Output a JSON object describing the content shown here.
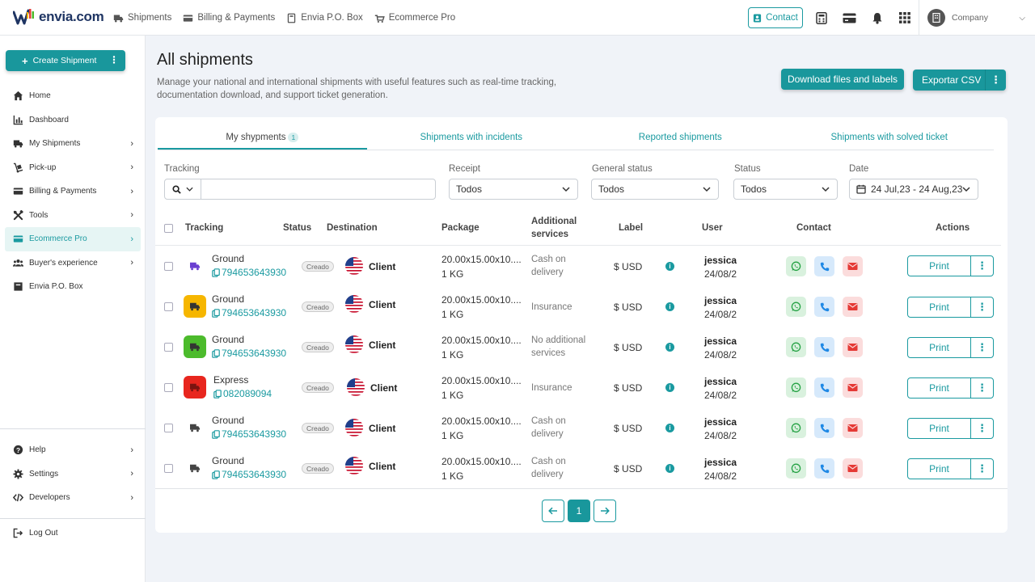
{
  "brand": {
    "name": "envia.com"
  },
  "topnav": [
    {
      "label": "Shipments",
      "icon": "truck-icon"
    },
    {
      "label": "Billing & Payments",
      "icon": "card-icon"
    },
    {
      "label": "Envia P.O. Box",
      "icon": "box-icon"
    },
    {
      "label": "Ecommerce Pro",
      "icon": "cart-icon"
    }
  ],
  "top_actions": {
    "contact": "Contact",
    "company": "Company"
  },
  "sidebar": {
    "create_label": "Create Shipment",
    "items": [
      {
        "label": "Home",
        "arrow": false
      },
      {
        "label": "Dashboard",
        "arrow": false
      },
      {
        "label": "My Shipments",
        "arrow": true
      },
      {
        "label": "Pick-up",
        "arrow": true
      },
      {
        "label": "Billing & Payments",
        "arrow": true
      },
      {
        "label": "Tools",
        "arrow": true
      },
      {
        "label": "Ecommerce Pro",
        "arrow": true,
        "active": true
      },
      {
        "label": "Buyer's experience",
        "arrow": true
      },
      {
        "label": "Envia P.O. Box",
        "arrow": false
      }
    ],
    "bottom": [
      {
        "label": "Help"
      },
      {
        "label": "Settings"
      },
      {
        "label": "Developers"
      }
    ],
    "logout": "Log Out"
  },
  "page": {
    "title": "All shipments",
    "description": "Manage your national and international shipments with useful features such as real-time tracking, documentation download, and support ticket generation.",
    "download_btn": "Download files and labels",
    "export_btn": "Exportar CSV"
  },
  "tabs": [
    {
      "label": "My shypments",
      "count": "1",
      "active": true
    },
    {
      "label": "Shipments with incidents"
    },
    {
      "label": "Reported shipments"
    },
    {
      "label": "Shipments with solved ticket"
    }
  ],
  "filters": {
    "tracking_label": "Tracking",
    "receipt_label": "Receipt",
    "receipt_value": "Todos",
    "general_status_label": "General status",
    "general_status_value": "Todos",
    "status_label": "Status",
    "status_value": "Todos",
    "date_label": "Date",
    "date_value": "24 Jul,23 - 24 Aug,23"
  },
  "table": {
    "headers": {
      "tracking": "Tracking",
      "status": "Status",
      "destination": "Destination",
      "package": "Package",
      "additional1": "Additional",
      "additional2": "services",
      "label": "Label",
      "user": "User",
      "contact": "Contact",
      "actions": "Actions"
    },
    "rows": [
      {
        "service": "Ground",
        "tracking": "794653643930",
        "status": "Creado",
        "destination": "Client",
        "pkg_dims": "20.00x15.00x10....",
        "pkg_weight": "1 KG",
        "additional1": "Cash on",
        "additional2": "delivery",
        "label": "$ USD",
        "user": "jessica",
        "date": "24/08/2",
        "print": "Print",
        "icon_color": "#ffffff",
        "icon_fg": "#6a3fd1"
      },
      {
        "service": "Ground",
        "tracking": "794653643930",
        "status": "Creado",
        "destination": "Client",
        "pkg_dims": "20.00x15.00x10....",
        "pkg_weight": "1 KG",
        "additional1": "Insurance",
        "additional2": "",
        "label": "$ USD",
        "user": "jessica",
        "date": "24/08/2",
        "print": "Print",
        "icon_color": "#f6b600",
        "icon_fg": "#333333"
      },
      {
        "service": "Ground",
        "tracking": "794653643930",
        "status": "Creado",
        "destination": "Client",
        "pkg_dims": "20.00x15.00x10....",
        "pkg_weight": "1 KG",
        "additional1": "No additional",
        "additional2": "services",
        "label": "$ USD",
        "user": "jessica",
        "date": "24/08/2",
        "print": "Print",
        "icon_color": "#4cbb2c",
        "icon_fg": "#333333"
      },
      {
        "service": "Express",
        "tracking": "082089094",
        "status": "Creado",
        "destination": "Client",
        "pkg_dims": "20.00x15.00x10....",
        "pkg_weight": "1 KG",
        "additional1": "Insurance",
        "additional2": "",
        "label": "$ USD",
        "user": "jessica",
        "date": "24/08/2",
        "print": "Print",
        "icon_color": "#e8261e",
        "icon_fg": "#7a1410"
      },
      {
        "service": "Ground",
        "tracking": "794653643930",
        "status": "Creado",
        "destination": "Client",
        "pkg_dims": "20.00x15.00x10....",
        "pkg_weight": "1 KG",
        "additional1": "Cash on",
        "additional2": "delivery",
        "label": "$ USD",
        "user": "jessica",
        "date": "24/08/2",
        "print": "Print",
        "icon_color": "#ffffff",
        "icon_fg": "#444444"
      },
      {
        "service": "Ground",
        "tracking": "794653643930",
        "status": "Creado",
        "destination": "Client",
        "pkg_dims": "20.00x15.00x10....",
        "pkg_weight": "1 KG",
        "additional1": "Cash on",
        "additional2": "delivery",
        "label": "$ USD",
        "user": "jessica",
        "date": "24/08/2",
        "print": "Print",
        "icon_color": "#ffffff",
        "icon_fg": "#444444"
      }
    ]
  },
  "pagination": {
    "current": "1"
  },
  "colors": {
    "accent": "#19979c",
    "whatsapp": "#25a244",
    "phone": "#1e88e5",
    "email": "#e53935"
  }
}
